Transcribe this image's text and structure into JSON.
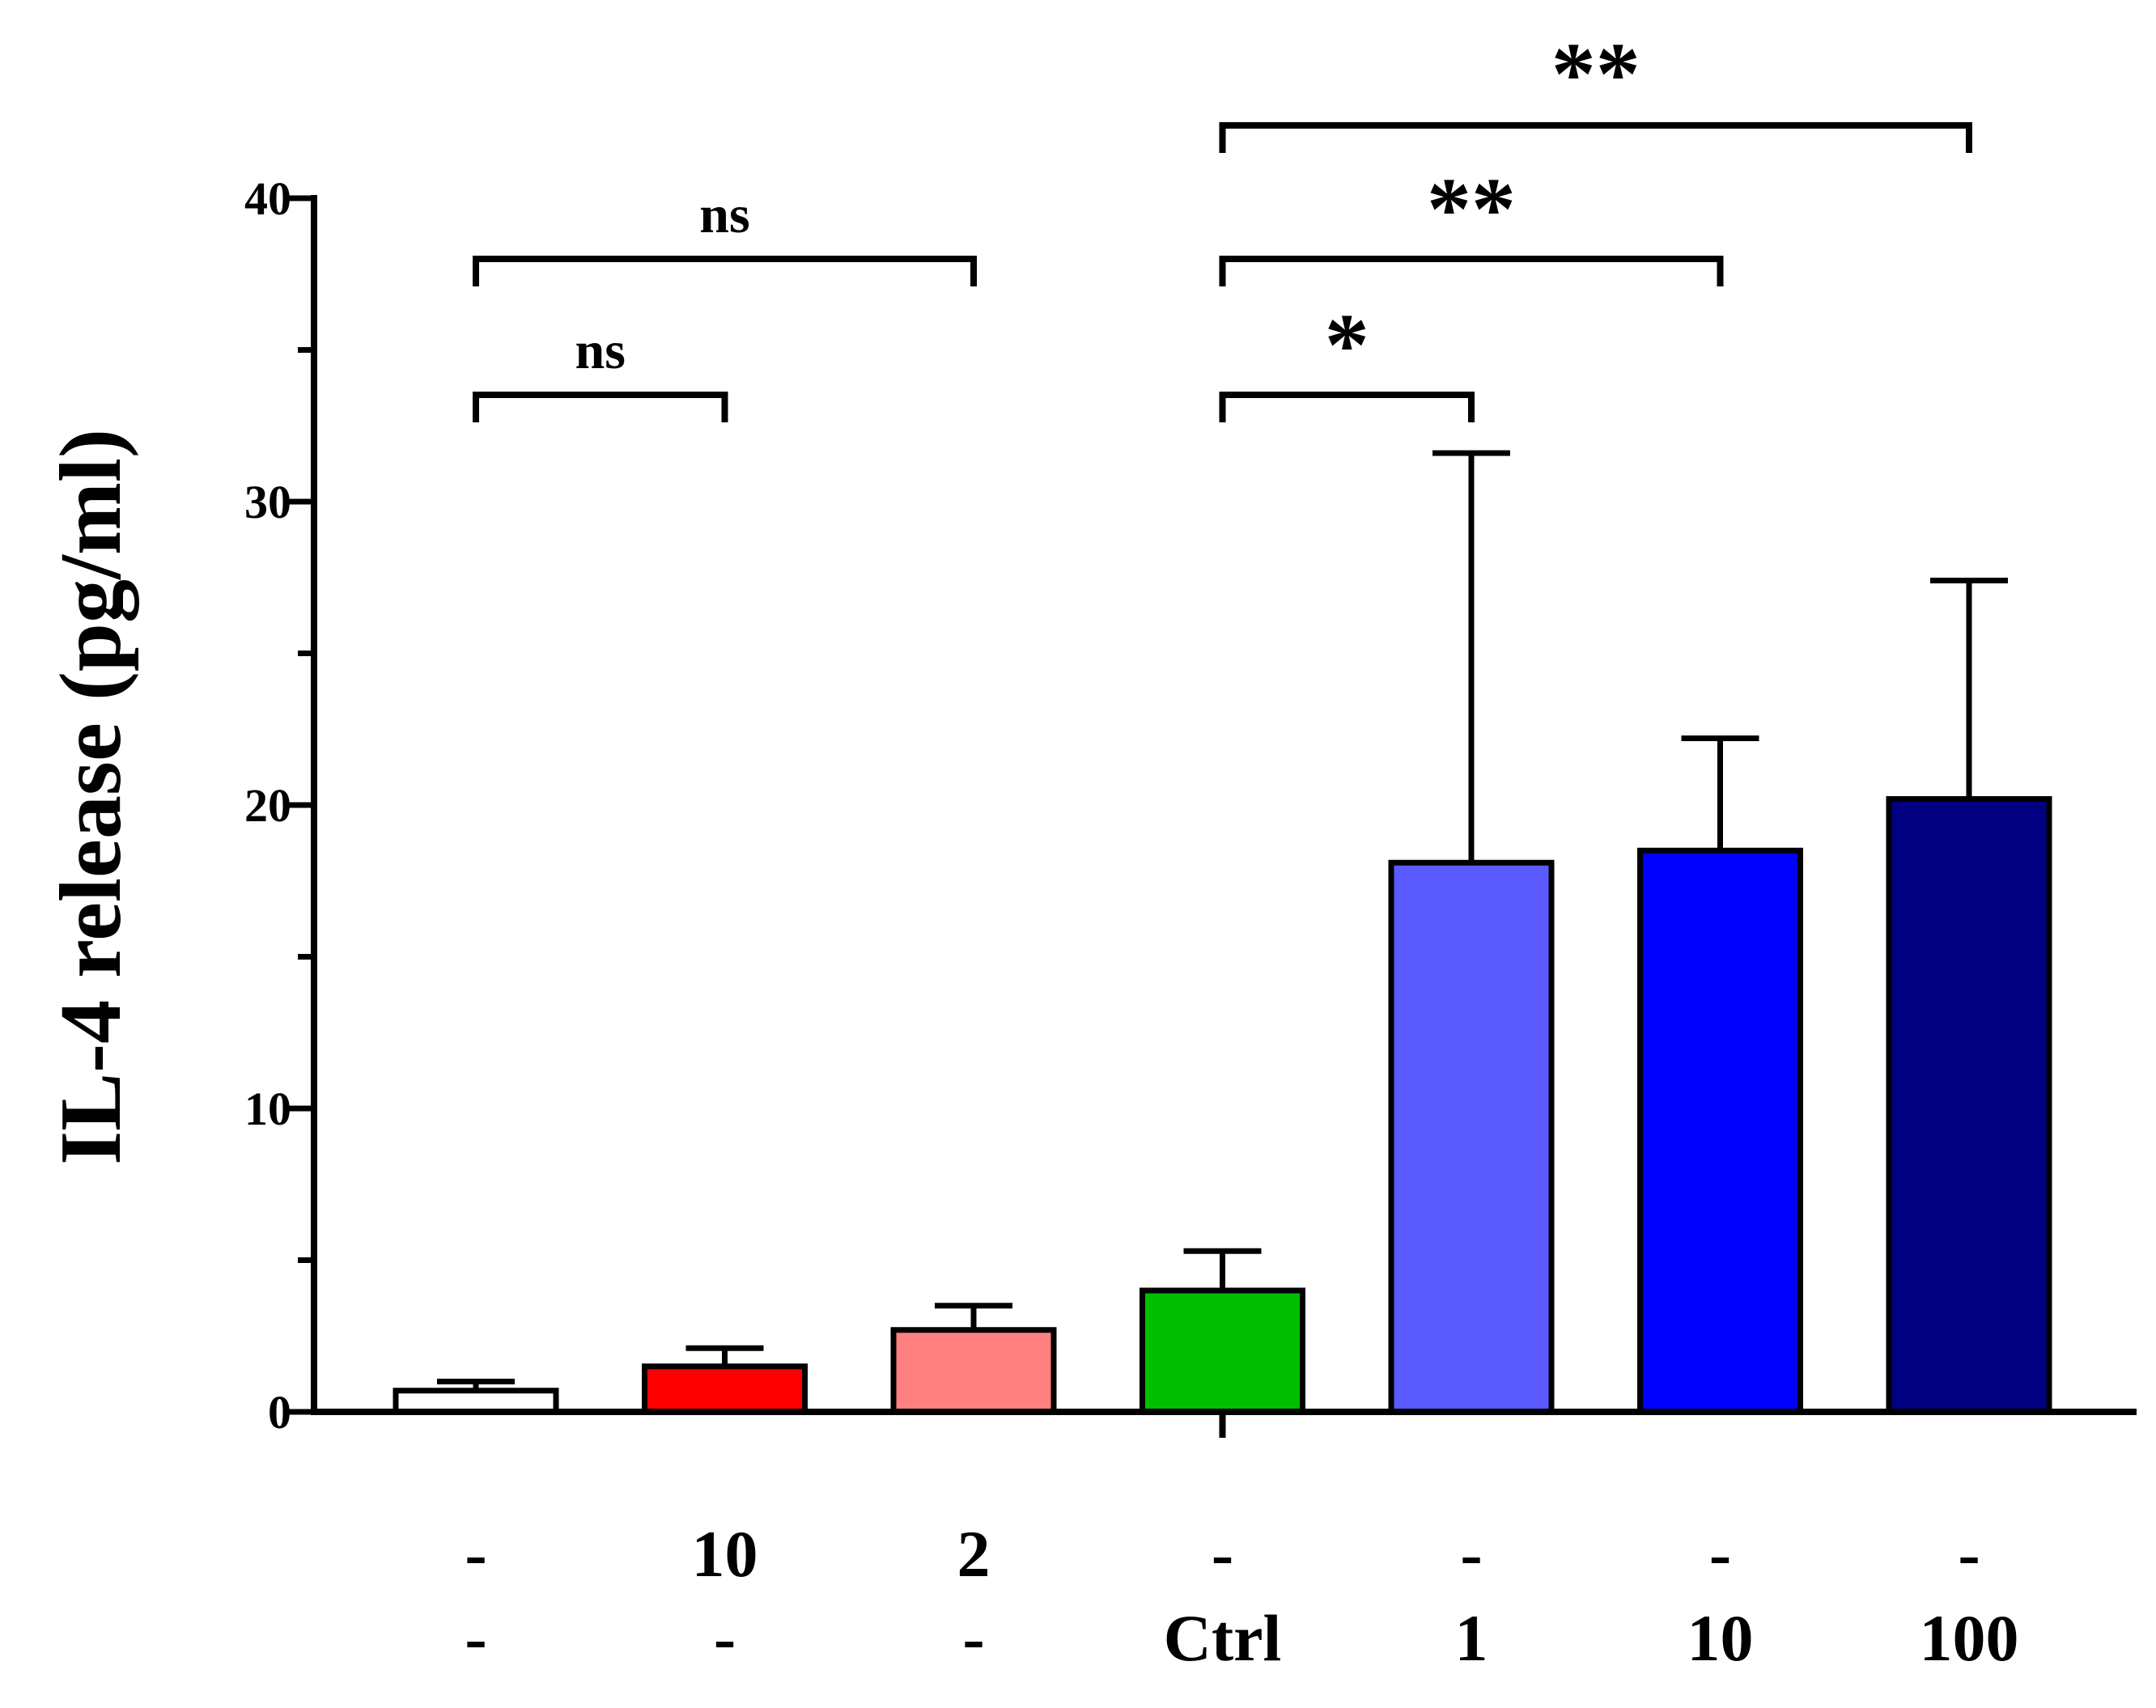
{
  "chart_data": {
    "type": "bar",
    "title": "",
    "xlabel": "",
    "ylabel": "IL-4 release (pg/ml)",
    "ylim": [
      0,
      40
    ],
    "yticks_major": [
      0,
      10,
      20,
      30,
      40
    ],
    "yticks_minor": [
      5,
      15,
      25,
      35
    ],
    "grid": false,
    "category_label_rows": [
      [
        "-",
        "10",
        "2",
        "-",
        "-",
        "-",
        "-"
      ],
      [
        "-",
        "-",
        "-",
        "Ctrl",
        "1",
        "10",
        "100"
      ]
    ],
    "bars": [
      {
        "value": 0.7,
        "error": 0.3,
        "color": "#ffffff"
      },
      {
        "value": 1.5,
        "error": 0.6,
        "color": "#ff0000"
      },
      {
        "value": 2.7,
        "error": 0.8,
        "color": "#ff8080"
      },
      {
        "value": 4.0,
        "error": 1.3,
        "color": "#00bf00"
      },
      {
        "value": 18.1,
        "error": 13.5,
        "color": "#5a5aff"
      },
      {
        "value": 18.5,
        "error": 3.7,
        "color": "#0000ff"
      },
      {
        "value": 20.2,
        "error": 7.2,
        "color": "#000080"
      }
    ],
    "significance": [
      {
        "from": 0,
        "to": 1,
        "label": "ns"
      },
      {
        "from": 0,
        "to": 2,
        "label": "ns"
      },
      {
        "from": 3,
        "to": 4,
        "label": "*"
      },
      {
        "from": 3,
        "to": 5,
        "label": "**"
      },
      {
        "from": 3,
        "to": 6,
        "label": "**"
      }
    ]
  }
}
